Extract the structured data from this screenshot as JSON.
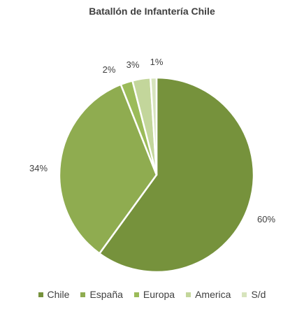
{
  "chart_data": {
    "type": "pie",
    "title": "Batallón de Infantería Chile",
    "categories": [
      "Chile",
      "España",
      "Europa",
      "America",
      "S/d"
    ],
    "values": [
      60,
      34,
      2,
      3,
      1
    ],
    "value_labels": [
      "60%",
      "34%",
      "2%",
      "3%",
      "1%"
    ],
    "colors": [
      "#76923c",
      "#8fac50",
      "#9bbb59",
      "#c3d69b",
      "#d7e4bd"
    ],
    "legend_position": "bottom"
  }
}
